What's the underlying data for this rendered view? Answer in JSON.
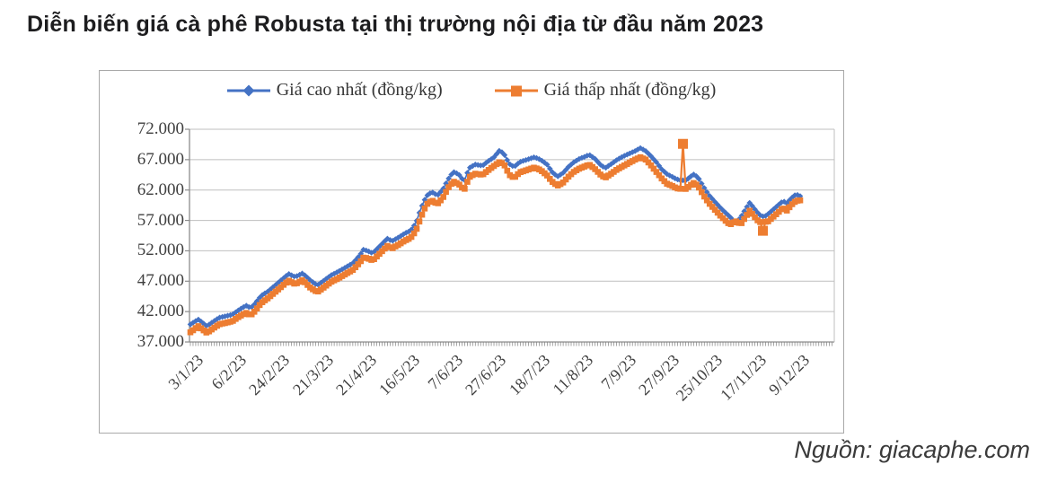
{
  "title": "Diễn biến giá cà phê Robusta tại thị trường nội địa từ đầu năm 2023",
  "source": "Nguồn: giacaphe.com",
  "chart_data": {
    "type": "line",
    "title": "Diễn biến giá cà phê Robusta tại thị trường nội địa từ đầu năm 2023",
    "unit": "đồng/kg",
    "legend_position": "top-inside",
    "grid": "horizontal",
    "grid_color": "#bfbfbf",
    "axis_color": "#8c8c8c",
    "text_color": "#3f3f3f",
    "ylim": [
      37000,
      72000
    ],
    "y_step": 5000,
    "y_tick_labels": [
      "72.000",
      "67.000",
      "62.000",
      "57.000",
      "52.000",
      "47.000",
      "42.000",
      "37.000"
    ],
    "x_tick_labels": [
      "3/1/23",
      "6/2/23",
      "24/2/23",
      "21/3/23",
      "21/4/23",
      "16/5/23",
      "7/6/23",
      "27/6/23",
      "18/7/23",
      "11/8/23",
      "7/9/23",
      "27/9/23",
      "25/10/23",
      "17/11/23",
      "9/12/23"
    ],
    "n_points": 230,
    "anchors_note": "anchors = [x position 0..1 spanning 3/1/23 to 9/12/23, price in đồng/kg], read from plot",
    "series": [
      {
        "name": "Giá cao nhất (đồng/kg)",
        "color": "#4472C4",
        "marker": "diamond",
        "anchors": [
          [
            0.0,
            39900
          ],
          [
            0.013,
            40700
          ],
          [
            0.027,
            39600
          ],
          [
            0.047,
            41000
          ],
          [
            0.069,
            41500
          ],
          [
            0.077,
            42100
          ],
          [
            0.091,
            43000
          ],
          [
            0.099,
            42600
          ],
          [
            0.106,
            43300
          ],
          [
            0.116,
            44600
          ],
          [
            0.127,
            45300
          ],
          [
            0.147,
            47000
          ],
          [
            0.161,
            48200
          ],
          [
            0.172,
            47700
          ],
          [
            0.184,
            48300
          ],
          [
            0.196,
            47200
          ],
          [
            0.208,
            46300
          ],
          [
            0.215,
            46800
          ],
          [
            0.231,
            48000
          ],
          [
            0.243,
            48600
          ],
          [
            0.255,
            49300
          ],
          [
            0.267,
            50000
          ],
          [
            0.278,
            51300
          ],
          [
            0.284,
            52200
          ],
          [
            0.29,
            52000
          ],
          [
            0.299,
            51600
          ],
          [
            0.311,
            52800
          ],
          [
            0.323,
            54000
          ],
          [
            0.331,
            53600
          ],
          [
            0.343,
            54300
          ],
          [
            0.352,
            54900
          ],
          [
            0.361,
            55300
          ],
          [
            0.37,
            56600
          ],
          [
            0.378,
            59000
          ],
          [
            0.387,
            61000
          ],
          [
            0.396,
            61700
          ],
          [
            0.405,
            61100
          ],
          [
            0.414,
            62100
          ],
          [
            0.423,
            63800
          ],
          [
            0.431,
            65000
          ],
          [
            0.44,
            64600
          ],
          [
            0.449,
            63400
          ],
          [
            0.457,
            65600
          ],
          [
            0.467,
            66200
          ],
          [
            0.479,
            66000
          ],
          [
            0.489,
            66800
          ],
          [
            0.497,
            67300
          ],
          [
            0.507,
            68500
          ],
          [
            0.514,
            68000
          ],
          [
            0.523,
            66300
          ],
          [
            0.531,
            65800
          ],
          [
            0.54,
            66600
          ],
          [
            0.552,
            67000
          ],
          [
            0.564,
            67400
          ],
          [
            0.574,
            67000
          ],
          [
            0.585,
            66200
          ],
          [
            0.593,
            65000
          ],
          [
            0.602,
            64200
          ],
          [
            0.611,
            64800
          ],
          [
            0.62,
            65800
          ],
          [
            0.629,
            66600
          ],
          [
            0.639,
            67200
          ],
          [
            0.645,
            67400
          ],
          [
            0.654,
            67800
          ],
          [
            0.663,
            67200
          ],
          [
            0.672,
            66200
          ],
          [
            0.68,
            65600
          ],
          [
            0.689,
            66200
          ],
          [
            0.7,
            67000
          ],
          [
            0.711,
            67600
          ],
          [
            0.72,
            68000
          ],
          [
            0.729,
            68400
          ],
          [
            0.738,
            68900
          ],
          [
            0.747,
            68400
          ],
          [
            0.755,
            67600
          ],
          [
            0.764,
            66600
          ],
          [
            0.773,
            65400
          ],
          [
            0.782,
            64600
          ],
          [
            0.788,
            64300
          ],
          [
            0.797,
            63800
          ],
          [
            0.804,
            63600
          ],
          [
            0.813,
            63600
          ],
          [
            0.82,
            64200
          ],
          [
            0.826,
            64600
          ],
          [
            0.833,
            64000
          ],
          [
            0.841,
            62600
          ],
          [
            0.85,
            61200
          ],
          [
            0.859,
            60200
          ],
          [
            0.868,
            59200
          ],
          [
            0.876,
            58400
          ],
          [
            0.885,
            57600
          ],
          [
            0.894,
            56500
          ],
          [
            0.903,
            57600
          ],
          [
            0.91,
            58800
          ],
          [
            0.917,
            59900
          ],
          [
            0.923,
            59200
          ],
          [
            0.929,
            58400
          ],
          [
            0.935,
            57800
          ],
          [
            0.941,
            57600
          ],
          [
            0.947,
            58000
          ],
          [
            0.956,
            58800
          ],
          [
            0.965,
            59600
          ],
          [
            0.972,
            60200
          ],
          [
            0.978,
            59800
          ],
          [
            0.985,
            60600
          ],
          [
            0.993,
            61300
          ],
          [
            1.0,
            61000
          ]
        ]
      },
      {
        "name": "Giá thấp nhất (đồng/kg)",
        "color": "#ED7D31",
        "marker": "square",
        "anchors": [
          [
            0.0,
            38600
          ],
          [
            0.013,
            39600
          ],
          [
            0.027,
            38500
          ],
          [
            0.047,
            39900
          ],
          [
            0.069,
            40400
          ],
          [
            0.077,
            41000
          ],
          [
            0.091,
            41800
          ],
          [
            0.099,
            41400
          ],
          [
            0.106,
            42100
          ],
          [
            0.116,
            43400
          ],
          [
            0.127,
            44200
          ],
          [
            0.147,
            45900
          ],
          [
            0.161,
            47100
          ],
          [
            0.172,
            46500
          ],
          [
            0.184,
            47200
          ],
          [
            0.196,
            46000
          ],
          [
            0.208,
            45200
          ],
          [
            0.215,
            45700
          ],
          [
            0.231,
            46900
          ],
          [
            0.243,
            47500
          ],
          [
            0.255,
            48200
          ],
          [
            0.267,
            48900
          ],
          [
            0.278,
            50100
          ],
          [
            0.284,
            50900
          ],
          [
            0.29,
            50800
          ],
          [
            0.299,
            50400
          ],
          [
            0.311,
            51600
          ],
          [
            0.323,
            52800
          ],
          [
            0.331,
            52400
          ],
          [
            0.343,
            53100
          ],
          [
            0.352,
            53700
          ],
          [
            0.361,
            54100
          ],
          [
            0.37,
            55300
          ],
          [
            0.378,
            57500
          ],
          [
            0.387,
            59600
          ],
          [
            0.396,
            60300
          ],
          [
            0.405,
            59700
          ],
          [
            0.414,
            60700
          ],
          [
            0.423,
            62400
          ],
          [
            0.431,
            63400
          ],
          [
            0.44,
            63000
          ],
          [
            0.449,
            62000
          ],
          [
            0.457,
            64100
          ],
          [
            0.467,
            64700
          ],
          [
            0.479,
            64500
          ],
          [
            0.489,
            65300
          ],
          [
            0.497,
            65900
          ],
          [
            0.507,
            66600
          ],
          [
            0.514,
            66300
          ],
          [
            0.523,
            64500
          ],
          [
            0.531,
            64000
          ],
          [
            0.54,
            64900
          ],
          [
            0.552,
            65300
          ],
          [
            0.564,
            65700
          ],
          [
            0.574,
            65300
          ],
          [
            0.585,
            64400
          ],
          [
            0.593,
            63400
          ],
          [
            0.602,
            62700
          ],
          [
            0.611,
            63200
          ],
          [
            0.62,
            64200
          ],
          [
            0.629,
            65000
          ],
          [
            0.639,
            65600
          ],
          [
            0.645,
            65800
          ],
          [
            0.654,
            66200
          ],
          [
            0.663,
            65500
          ],
          [
            0.672,
            64600
          ],
          [
            0.68,
            64000
          ],
          [
            0.689,
            64600
          ],
          [
            0.7,
            65400
          ],
          [
            0.711,
            66000
          ],
          [
            0.72,
            66500
          ],
          [
            0.729,
            67000
          ],
          [
            0.738,
            67400
          ],
          [
            0.747,
            67000
          ],
          [
            0.755,
            66100
          ],
          [
            0.764,
            65000
          ],
          [
            0.773,
            63900
          ],
          [
            0.782,
            63000
          ],
          [
            0.788,
            62800
          ],
          [
            0.797,
            62300
          ],
          [
            0.804,
            62200
          ],
          [
            0.813,
            62200
          ],
          [
            0.82,
            62800
          ],
          [
            0.826,
            63200
          ],
          [
            0.833,
            62600
          ],
          [
            0.841,
            61200
          ],
          [
            0.85,
            59900
          ],
          [
            0.859,
            58900
          ],
          [
            0.868,
            57900
          ],
          [
            0.876,
            57100
          ],
          [
            0.885,
            56300
          ],
          [
            0.894,
            56900
          ],
          [
            0.903,
            56400
          ],
          [
            0.91,
            57500
          ],
          [
            0.917,
            58600
          ],
          [
            0.923,
            57900
          ],
          [
            0.929,
            57100
          ],
          [
            0.935,
            56700
          ],
          [
            0.947,
            56800
          ],
          [
            0.956,
            57600
          ],
          [
            0.965,
            58400
          ],
          [
            0.972,
            59100
          ],
          [
            0.978,
            58600
          ],
          [
            0.985,
            59500
          ],
          [
            0.993,
            60200
          ],
          [
            1.0,
            60300
          ]
        ],
        "spikes": [
          {
            "frac": 0.808,
            "value": 69600,
            "note": "isolated low-price spike above band, early Oct"
          },
          {
            "frac": 0.9405,
            "value": 55300,
            "note": "isolated low-price drop below band, late Nov"
          }
        ]
      }
    ]
  }
}
